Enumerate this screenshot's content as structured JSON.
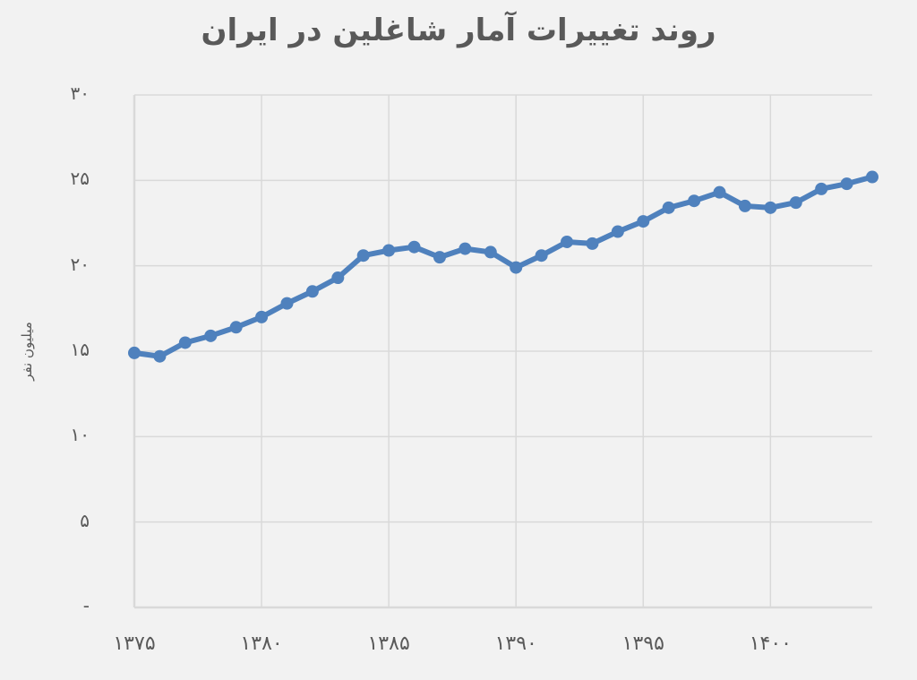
{
  "chart_data": {
    "type": "line",
    "title": "روند تغییرات آمار شاغلین در ایران",
    "xlabel": "",
    "ylabel": "میلیون نفر",
    "ylim": [
      0,
      30
    ],
    "xlim": [
      1375,
      1404
    ],
    "grid": true,
    "legend": "none",
    "y_ticks": [
      0,
      5,
      10,
      15,
      20,
      25,
      30
    ],
    "y_tick_labels": [
      "-",
      "۵",
      "۱۰",
      "۱۵",
      "۲۰",
      "۲۵",
      "۳۰"
    ],
    "x_ticks": [
      1375,
      1380,
      1385,
      1390,
      1395,
      1400
    ],
    "x_tick_labels": [
      "۱۳۷۵",
      "۱۳۸۰",
      "۱۳۸۵",
      "۱۳۹۰",
      "۱۳۹۵",
      "۱۴۰۰"
    ],
    "series": [
      {
        "name": "شاغلین",
        "color": "#4f81bd",
        "x": [
          1375,
          1376,
          1377,
          1378,
          1379,
          1380,
          1381,
          1382,
          1383,
          1384,
          1385,
          1386,
          1387,
          1388,
          1389,
          1390,
          1391,
          1392,
          1393,
          1394,
          1395,
          1396,
          1397,
          1398,
          1399,
          1400,
          1401,
          1402,
          1403,
          1404
        ],
        "values": [
          14.9,
          14.7,
          15.5,
          15.9,
          16.4,
          17.0,
          17.8,
          18.5,
          19.3,
          20.6,
          20.9,
          21.1,
          20.5,
          21.0,
          20.8,
          19.9,
          20.6,
          21.4,
          21.3,
          22.0,
          22.6,
          23.4,
          23.8,
          24.3,
          23.5,
          23.4,
          23.7,
          24.5,
          24.8,
          25.2
        ]
      }
    ]
  },
  "colors": {
    "background": "#f2f2f2",
    "grid": "#d9d9d9",
    "line": "#4f81bd",
    "text": "#595959"
  }
}
